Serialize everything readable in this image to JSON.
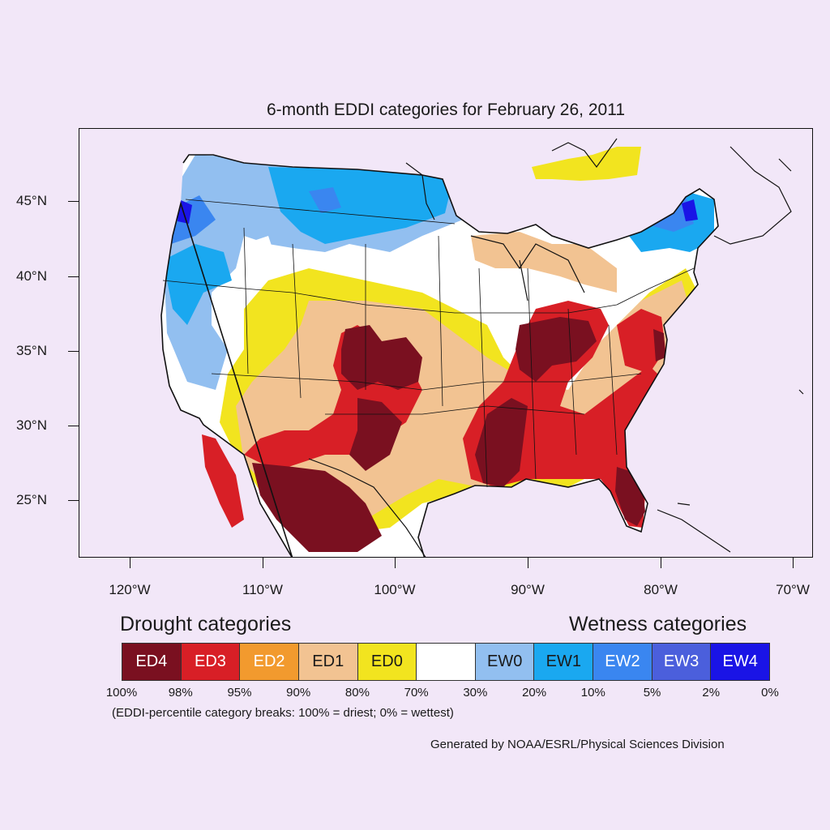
{
  "title": "6-month EDDI categories for February 26, 2011",
  "axes": {
    "lat_labels": [
      "45°N",
      "40°N",
      "35°N",
      "30°N",
      "25°N"
    ],
    "lon_labels": [
      "120°W",
      "110°W",
      "100°W",
      "90°W",
      "80°W",
      "70°W"
    ]
  },
  "legend": {
    "drought_heading": "Drought categories",
    "wetness_heading": "Wetness categories",
    "categories": [
      {
        "label": "ED4",
        "color": "#7a1020",
        "text_color": "#ffffff"
      },
      {
        "label": "ED3",
        "color": "#d81f26",
        "text_color": "#ffffff"
      },
      {
        "label": "ED2",
        "color": "#f29a2e",
        "text_color": "#ffffff"
      },
      {
        "label": "ED1",
        "color": "#f2c392",
        "text_color": "#1a1a1a"
      },
      {
        "label": "ED0",
        "color": "#f2e41f",
        "text_color": "#1a1a1a"
      },
      {
        "label": "",
        "color": "#ffffff",
        "text_color": "#1a1a1a"
      },
      {
        "label": "EW0",
        "color": "#92bff0",
        "text_color": "#1a1a1a"
      },
      {
        "label": "EW1",
        "color": "#1aa8f0",
        "text_color": "#1a1a1a"
      },
      {
        "label": "EW2",
        "color": "#3a86f0",
        "text_color": "#ffffff"
      },
      {
        "label": "EW3",
        "color": "#4b5fdc",
        "text_color": "#ffffff"
      },
      {
        "label": "EW4",
        "color": "#1a14e6",
        "text_color": "#ffffff"
      }
    ],
    "breaks": [
      "100%",
      "98%",
      "95%",
      "90%",
      "80%",
      "70%",
      "30%",
      "20%",
      "10%",
      "5%",
      "2%",
      "0%"
    ],
    "note": "(EDDI-percentile category breaks: 100% = driest; 0% = wettest)"
  },
  "credit": "Generated by NOAA/ESRL/Physical Sciences Division"
}
